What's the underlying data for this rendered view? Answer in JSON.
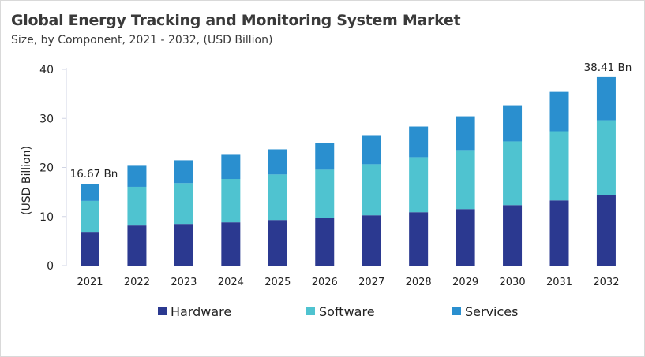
{
  "chart_data": {
    "type": "bar",
    "stacked": true,
    "title": "Global Energy Tracking and Monitoring System Market",
    "subtitle": "Size, by Component, 2021 - 2032, (USD Billion)",
    "xlabel": "",
    "ylabel": "(USD Billion)",
    "ylim": [
      0,
      40
    ],
    "yticks": [
      0,
      10,
      20,
      30,
      40
    ],
    "grid": false,
    "legend": "bottom",
    "categories": [
      "2021",
      "2022",
      "2023",
      "2024",
      "2025",
      "2026",
      "2027",
      "2028",
      "2029",
      "2030",
      "2031",
      "2032"
    ],
    "series": [
      {
        "name": "Hardware",
        "color": "#2b3990",
        "values": [
          6.73,
          8.17,
          8.49,
          8.81,
          9.29,
          9.77,
          10.25,
          10.89,
          11.53,
          12.33,
          13.29,
          14.42
        ]
      },
      {
        "name": "Software",
        "color": "#4fc3d0",
        "values": [
          6.46,
          7.9,
          8.33,
          8.86,
          9.29,
          9.77,
          10.41,
          11.21,
          12.02,
          12.98,
          14.1,
          15.21
        ]
      },
      {
        "name": "Services",
        "color": "#2a8fcf",
        "values": [
          3.48,
          4.27,
          4.64,
          4.91,
          5.12,
          5.45,
          5.93,
          6.25,
          6.88,
          7.37,
          8.01,
          8.78
        ]
      }
    ],
    "annotations": [
      {
        "category": "2021",
        "text": "16.67 Bn"
      },
      {
        "category": "2032",
        "text": "38.41 Bn"
      }
    ]
  }
}
